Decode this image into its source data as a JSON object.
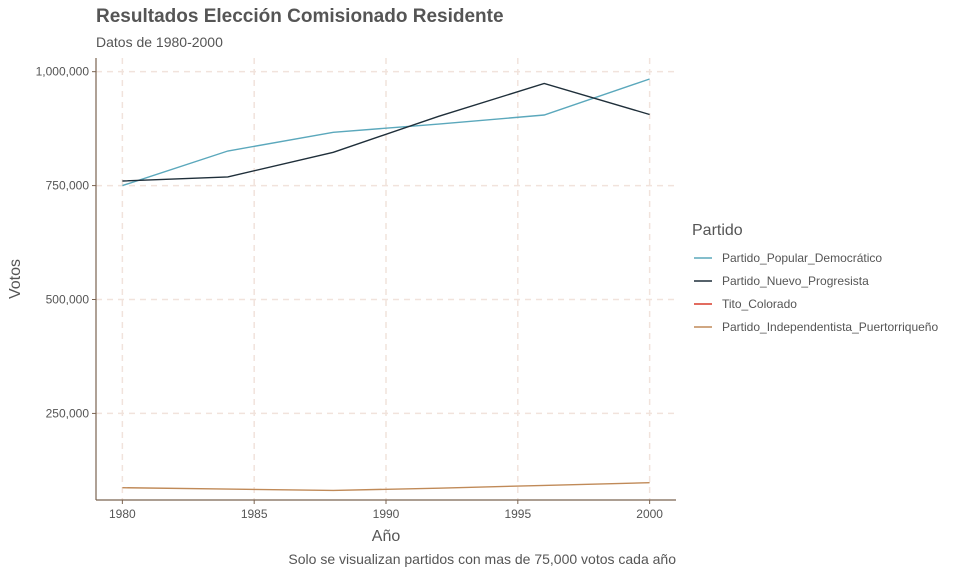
{
  "chart_data": {
    "type": "line",
    "title": "Resultados Elección Comisionado Residente",
    "subtitle": "Datos de 1980-2000",
    "xlabel": "Año",
    "ylabel": "Votos",
    "caption": "Solo se visualizan partidos con mas de 75,000 votos cada año",
    "xlim": [
      1979,
      2001
    ],
    "ylim": [
      60000,
      1030000
    ],
    "x_ticks": [
      1980,
      1985,
      1990,
      1995,
      2000
    ],
    "x_tick_labels": [
      "1980",
      "1985",
      "1990",
      "1995",
      "2000"
    ],
    "y_ticks": [
      250000,
      500000,
      750000,
      1000000
    ],
    "y_tick_labels": [
      "250,000",
      "500,000",
      "750,000",
      "1,000,000"
    ],
    "grid": true,
    "legend": {
      "title": "Partido",
      "position": "right"
    },
    "series": [
      {
        "name": "Partido_Popular_Democrático",
        "color": "#5ba8bc",
        "x": [
          1980,
          1984,
          1988,
          1992,
          1996,
          2000
        ],
        "y": [
          750000,
          826000,
          867000,
          885000,
          905000,
          984000
        ]
      },
      {
        "name": "Partido_Nuevo_Progresista",
        "color": "#1f2f3a",
        "x": [
          1980,
          1984,
          1988,
          1992,
          1996,
          2000
        ],
        "y": [
          760000,
          769000,
          823000,
          902000,
          974000,
          906000
        ]
      },
      {
        "name": "Tito_Colorado",
        "color": "#d83c2c",
        "x": [],
        "y": []
      },
      {
        "name": "Partido_Independentista_Puertorriqueño",
        "color": "#c08a58",
        "x": [
          1980,
          1984,
          1988,
          1992,
          1996,
          2000
        ],
        "y": [
          87000,
          84000,
          81000,
          86000,
          92000,
          98000
        ]
      }
    ]
  }
}
